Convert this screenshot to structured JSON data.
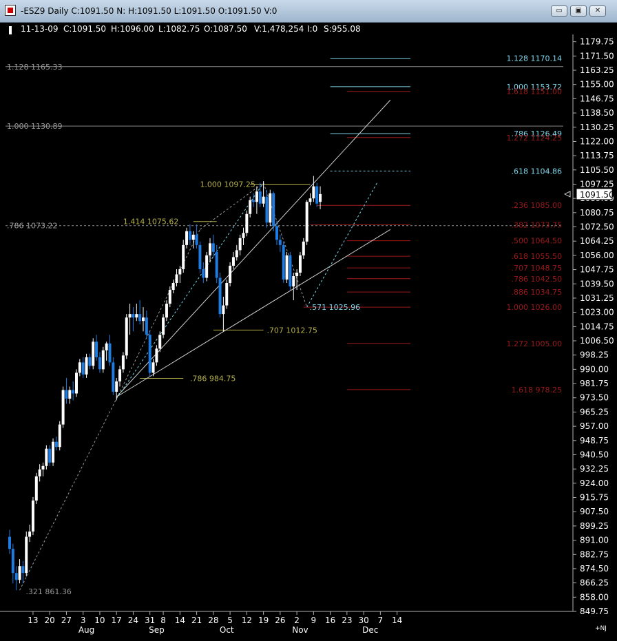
{
  "window": {
    "title": "-ESZ9 Daily C:1091.50 N: H:1091.50 L:1091.50 O:1091.50 V:0",
    "min_glyph": "▭",
    "max_glyph": "▣",
    "close_glyph": "✕"
  },
  "bar_info": {
    "date": "11-13-09",
    "close": "C:1091.50",
    "high": "H:1096.00",
    "low": "L:1082.75",
    "open": "O:1087.50",
    "volume": "V:1,478,254",
    "oi": "I:0",
    "s": "S:955.08"
  },
  "corner_tag": "+NJ",
  "colors": {
    "background": "#000000",
    "up_candle": "#ffffff",
    "down_candle": "#1e7be0",
    "fib_cyan": "#7fd6ea",
    "fib_red": "#9b1a1a",
    "fib_olive": "#b5b04a",
    "fib_gray": "#9a9a9a"
  },
  "chart_data": {
    "type": "candlestick",
    "y_range": [
      849.75,
      1184.0
    ],
    "y_ticks": [
      "1179.75",
      "1171.50",
      "1163.25",
      "1155.00",
      "1146.75",
      "1138.50",
      "1130.25",
      "1122.00",
      "1113.75",
      "1105.50",
      "1097.25",
      "1089.00",
      "1080.75",
      "1072.50",
      "1064.25",
      "1056.00",
      "1047.75",
      "1039.50",
      "1031.25",
      "1023.00",
      "1014.75",
      "1006.50",
      "998.25",
      "990.00",
      "981.75",
      "973.50",
      "965.25",
      "957.00",
      "948.75",
      "940.50",
      "932.25",
      "924.00",
      "915.75",
      "907.50",
      "899.25",
      "891.00",
      "882.75",
      "874.50",
      "866.25",
      "858.00",
      "849.75"
    ],
    "last_price": "1091.50",
    "x_ticks": [
      {
        "label": "13",
        "index": 7
      },
      {
        "label": "20",
        "index": 12
      },
      {
        "label": "27",
        "index": 17
      },
      {
        "label": "3",
        "index": 22
      },
      {
        "label": "10",
        "index": 27
      },
      {
        "label": "17",
        "index": 32
      },
      {
        "label": "24",
        "index": 37
      },
      {
        "label": "31",
        "index": 42
      },
      {
        "label": "8",
        "index": 46
      },
      {
        "label": "14",
        "index": 51
      },
      {
        "label": "21",
        "index": 56
      },
      {
        "label": "28",
        "index": 61
      },
      {
        "label": "5",
        "index": 66
      },
      {
        "label": "12",
        "index": 71
      },
      {
        "label": "19",
        "index": 76
      },
      {
        "label": "26",
        "index": 81
      },
      {
        "label": "2",
        "index": 86
      },
      {
        "label": "9",
        "index": 91
      },
      {
        "label": "16",
        "index": 96
      },
      {
        "label": "23",
        "index": 101
      },
      {
        "label": "30",
        "index": 106
      },
      {
        "label": "7",
        "index": 111
      },
      {
        "label": "14",
        "index": 116
      }
    ],
    "month_labels": [
      {
        "label": "Aug",
        "index": 23
      },
      {
        "label": "Sep",
        "index": 44
      },
      {
        "label": "Oct",
        "index": 65
      },
      {
        "label": "Nov",
        "index": 87
      },
      {
        "label": "Dec",
        "index": 108
      }
    ],
    "candles": [
      [
        893,
        897,
        883,
        886
      ],
      [
        886,
        889,
        866,
        872
      ],
      [
        872,
        876,
        862,
        868
      ],
      [
        868,
        880,
        866,
        876
      ],
      [
        876,
        879,
        866,
        872
      ],
      [
        872,
        896,
        870,
        893
      ],
      [
        893,
        900,
        890,
        896
      ],
      [
        896,
        916,
        894,
        914
      ],
      [
        914,
        930,
        912,
        928
      ],
      [
        928,
        935,
        925,
        932
      ],
      [
        932,
        936,
        928,
        934
      ],
      [
        934,
        946,
        932,
        944
      ],
      [
        944,
        946,
        934,
        936
      ],
      [
        936,
        950,
        934,
        948
      ],
      [
        948,
        951,
        943,
        945
      ],
      [
        945,
        960,
        943,
        958
      ],
      [
        958,
        980,
        956,
        978
      ],
      [
        978,
        985,
        970,
        973
      ],
      [
        973,
        980,
        970,
        978
      ],
      [
        978,
        983,
        972,
        976
      ],
      [
        976,
        990,
        974,
        988
      ],
      [
        988,
        996,
        986,
        994
      ],
      [
        994,
        997,
        985,
        987
      ],
      [
        987,
        999,
        985,
        997
      ],
      [
        997,
        999,
        990,
        992
      ],
      [
        992,
        1008,
        990,
        1006
      ],
      [
        1006,
        1010,
        995,
        997
      ],
      [
        997,
        1000,
        988,
        990
      ],
      [
        990,
        1003,
        988,
        1001
      ],
      [
        1001,
        1006,
        995,
        1005
      ],
      [
        1005,
        1010,
        992,
        994
      ],
      [
        994,
        997,
        975,
        977
      ],
      [
        977,
        985,
        972,
        983
      ],
      [
        983,
        992,
        980,
        990
      ],
      [
        990,
        1000,
        988,
        998
      ],
      [
        998,
        1022,
        996,
        1020
      ],
      [
        1020,
        1028,
        1010,
        1022
      ],
      [
        1022,
        1026,
        1012,
        1020
      ],
      [
        1020,
        1028,
        1018,
        1022
      ],
      [
        1022,
        1030,
        1016,
        1018
      ],
      [
        1018,
        1026,
        1012,
        1020
      ],
      [
        1020,
        1024,
        1008,
        1010
      ],
      [
        1010,
        1012,
        986,
        988
      ],
      [
        988,
        996,
        986,
        994
      ],
      [
        994,
        1004,
        992,
        1002
      ],
      [
        1002,
        1012,
        1000,
        1010
      ],
      [
        1010,
        1022,
        1008,
        1020
      ],
      [
        1020,
        1030,
        1018,
        1028
      ],
      [
        1028,
        1038,
        1026,
        1036
      ],
      [
        1036,
        1042,
        1034,
        1040
      ],
      [
        1040,
        1048,
        1038,
        1045
      ],
      [
        1045,
        1050,
        1040,
        1048
      ],
      [
        1048,
        1065,
        1046,
        1062
      ],
      [
        1062,
        1072,
        1060,
        1070
      ],
      [
        1070,
        1074,
        1062,
        1065
      ],
      [
        1065,
        1070,
        1060,
        1068
      ],
      [
        1068,
        1074,
        1060,
        1062
      ],
      [
        1062,
        1064,
        1046,
        1048
      ],
      [
        1048,
        1052,
        1040,
        1043
      ],
      [
        1043,
        1058,
        1041,
        1056
      ],
      [
        1056,
        1066,
        1052,
        1063
      ],
      [
        1063,
        1068,
        1055,
        1058
      ],
      [
        1058,
        1062,
        1040,
        1043
      ],
      [
        1043,
        1046,
        1020,
        1022
      ],
      [
        1022,
        1032,
        1012,
        1027
      ],
      [
        1027,
        1042,
        1025,
        1040
      ],
      [
        1040,
        1052,
        1038,
        1050
      ],
      [
        1050,
        1058,
        1048,
        1055
      ],
      [
        1055,
        1062,
        1053,
        1059
      ],
      [
        1059,
        1068,
        1056,
        1066
      ],
      [
        1066,
        1072,
        1062,
        1069
      ],
      [
        1069,
        1082,
        1067,
        1080
      ],
      [
        1080,
        1090,
        1078,
        1088
      ],
      [
        1088,
        1092,
        1084,
        1087
      ],
      [
        1087,
        1096,
        1080,
        1093
      ],
      [
        1093,
        1098,
        1084,
        1086
      ],
      [
        1086,
        1099,
        1084,
        1090
      ],
      [
        1090,
        1094,
        1072,
        1075
      ],
      [
        1075,
        1094,
        1073,
        1092
      ],
      [
        1092,
        1093,
        1070,
        1073
      ],
      [
        1073,
        1076,
        1062,
        1065
      ],
      [
        1065,
        1068,
        1058,
        1062
      ],
      [
        1062,
        1064,
        1040,
        1042
      ],
      [
        1042,
        1058,
        1040,
        1056
      ],
      [
        1056,
        1058,
        1036,
        1038
      ],
      [
        1038,
        1046,
        1030,
        1044
      ],
      [
        1044,
        1048,
        1036,
        1046
      ],
      [
        1046,
        1058,
        1044,
        1056
      ],
      [
        1056,
        1066,
        1054,
        1064
      ],
      [
        1064,
        1088,
        1062,
        1087
      ],
      [
        1087,
        1092,
        1085,
        1089
      ],
      [
        1089,
        1102,
        1087,
        1096
      ],
      [
        1096,
        1098,
        1084,
        1086
      ],
      [
        1087,
        1096,
        1082.75,
        1091.5
      ]
    ],
    "fib_levels": [
      {
        "label": "1.128 1170.14",
        "value": 1170.14,
        "color": "#7fd6ea",
        "from": 96,
        "to": 120
      },
      {
        "label": "1.000 1153.72",
        "value": 1153.72,
        "color": "#7fd6ea",
        "from": 96,
        "to": 120
      },
      {
        "label": "1.618 1151.00",
        "value": 1151.0,
        "color": "#9b1a1a",
        "from": 101,
        "to": 120
      },
      {
        "label": ".786 1126.49",
        "value": 1126.49,
        "color": "#7fd6ea",
        "from": 96,
        "to": 120
      },
      {
        "label": "1.272 1124.25",
        "value": 1124.25,
        "color": "#9b1a1a",
        "from": 101,
        "to": 120
      },
      {
        "label": ".618 1104.86",
        "value": 1104.86,
        "color": "#7fd6ea",
        "from": 96,
        "to": 120,
        "dashed": true
      },
      {
        "label": ".236 1085.00",
        "value": 1085.0,
        "color": "#9b1a1a",
        "from": 92,
        "to": 120
      },
      {
        "label": ".382 1073.75",
        "value": 1073.75,
        "color": "#9b1a1a",
        "from": 90,
        "to": 120
      },
      {
        "label": ".500 1064.50",
        "value": 1064.5,
        "color": "#9b1a1a",
        "from": 101,
        "to": 120
      },
      {
        "label": ".618 1055.50",
        "value": 1055.5,
        "color": "#9b1a1a",
        "from": 101,
        "to": 120
      },
      {
        "label": ".707 1048.75",
        "value": 1048.75,
        "color": "#9b1a1a",
        "from": 101,
        "to": 120
      },
      {
        "label": ".786 1042.50",
        "value": 1042.5,
        "color": "#9b1a1a",
        "from": 101,
        "to": 120
      },
      {
        "label": ".886 1034.75",
        "value": 1034.75,
        "color": "#9b1a1a",
        "from": 101,
        "to": 120
      },
      {
        "label": "1.000 1026.00",
        "value": 1026.0,
        "color": "#9b1a1a",
        "from": 88,
        "to": 120
      },
      {
        "label": "1.272 1005.00",
        "value": 1005.0,
        "color": "#9b1a1a",
        "from": 101,
        "to": 120
      },
      {
        "label": "1.618 978.25",
        "value": 978.25,
        "color": "#9b1a1a",
        "from": 101,
        "to": 120
      }
    ],
    "left_levels": [
      {
        "label": "1.128 1165.33",
        "value": 1165.33
      },
      {
        "label": "1.000 1130.89",
        "value": 1130.89
      },
      {
        "label": ".786 1073.22",
        "value": 1073.22,
        "dashed": true
      }
    ],
    "olive_levels": [
      {
        "label": "1.000 1097.25",
        "value": 1097.25,
        "from": 72,
        "to": 90,
        "label_index": 57
      },
      {
        "label": "1.414 1075.62",
        "value": 1075.62,
        "from": 55,
        "to": 62,
        "label_index": 34
      },
      {
        "label": ".707 1012.75",
        "value": 1012.75,
        "from": 61,
        "to": 76,
        "label_index": 77
      },
      {
        "label": ".786 984.75",
        "value": 984.75,
        "from": 39,
        "to": 52,
        "label_index": 54
      }
    ],
    "annotations": [
      {
        "label": ".321 861.36",
        "index": 4,
        "value": 861.36,
        "color": "#9a9a9a"
      },
      {
        "label": ".571 1025.96",
        "index": 89,
        "value": 1025.96,
        "color": "#7fd6ea"
      }
    ],
    "trendlines": [
      {
        "from": [
          32,
          974
        ],
        "to": [
          114,
          1146
        ],
        "color": "#d0d0d0"
      },
      {
        "from": [
          32,
          974
        ],
        "to": [
          114,
          1071
        ],
        "color": "#d0d0d0"
      }
    ],
    "dashed_lines": [
      {
        "from": [
          3,
          862
        ],
        "to": [
          32,
          973
        ],
        "color": "#9a9a9a"
      },
      {
        "from": [
          32,
          973
        ],
        "to": [
          57,
          1071
        ],
        "color": "#9a9a9a"
      },
      {
        "from": [
          32,
          973
        ],
        "to": [
          76,
          1098
        ],
        "color": "#7fd6ea"
      },
      {
        "from": [
          57,
          1071
        ],
        "to": [
          76,
          1098
        ],
        "color": "#9a9a9a"
      },
      {
        "from": [
          76,
          1098
        ],
        "to": [
          89,
          1026
        ],
        "color": "#9a9a9a"
      },
      {
        "from": [
          89,
          1026
        ],
        "to": [
          110,
          1098
        ],
        "color": "#7fd6ea"
      }
    ]
  }
}
